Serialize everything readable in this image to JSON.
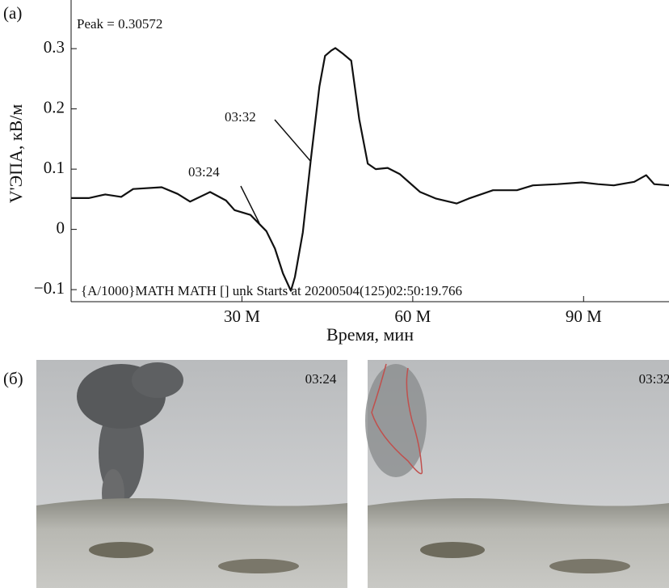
{
  "chart_data": {
    "type": "line",
    "panel_label": "(a)",
    "annotation": "Peak = 0.30572",
    "footer": "{A/1000}MATH MATH [] unk Starts at 20200504(125)02:50:19.766",
    "marker_labels": [
      "03:24",
      "03:32"
    ],
    "x_label": "Время, мин",
    "y_label": "V'ЭПА, кВ/м",
    "color": "#111111",
    "x": [
      0,
      3.1,
      6.0,
      8.8,
      10.9,
      15.9,
      18.7,
      20.9,
      24.4,
      27.2,
      28.7,
      31.5,
      34.3,
      35.8,
      37.2,
      38.6,
      39.3,
      40.7,
      42.1,
      43.6,
      44.6,
      45.7,
      46.4,
      47.8,
      49.2,
      50.6,
      52.1,
      53.5,
      55.6,
      57.7,
      61.3,
      64.1,
      67.7,
      69.8,
      74.1,
      78.3,
      81.1,
      85.4,
      89.7,
      92.5,
      95.3,
      98.9,
      101.0,
      102.4,
      105
    ],
    "values": [
      0.052,
      0.052,
      0.058,
      0.054,
      0.067,
      0.07,
      0.059,
      0.046,
      0.062,
      0.048,
      0.032,
      0.024,
      -0.003,
      -0.032,
      -0.073,
      -0.102,
      -0.079,
      -0.005,
      0.116,
      0.237,
      0.288,
      0.297,
      0.301,
      0.291,
      0.28,
      0.183,
      0.109,
      0.1,
      0.102,
      0.092,
      0.062,
      0.051,
      0.043,
      0.051,
      0.065,
      0.065,
      0.073,
      0.075,
      0.078,
      0.075,
      0.073,
      0.079,
      0.09,
      0.075,
      0.073
    ],
    "xlim": [
      0,
      105
    ],
    "ylim": [
      -0.12,
      0.37
    ],
    "xticks": [
      {
        "value": 30,
        "label": "30 M"
      },
      {
        "value": 60,
        "label": "60 M"
      },
      {
        "value": 90,
        "label": "90 M"
      }
    ],
    "yticks": [
      {
        "value": -0.1,
        "label": "−0.1"
      },
      0,
      0.1,
      0.2,
      0.3
    ]
  },
  "panel_b": {
    "label": "(б)",
    "photos": [
      {
        "timestamp": "03:24"
      },
      {
        "timestamp": "03:32"
      }
    ]
  }
}
